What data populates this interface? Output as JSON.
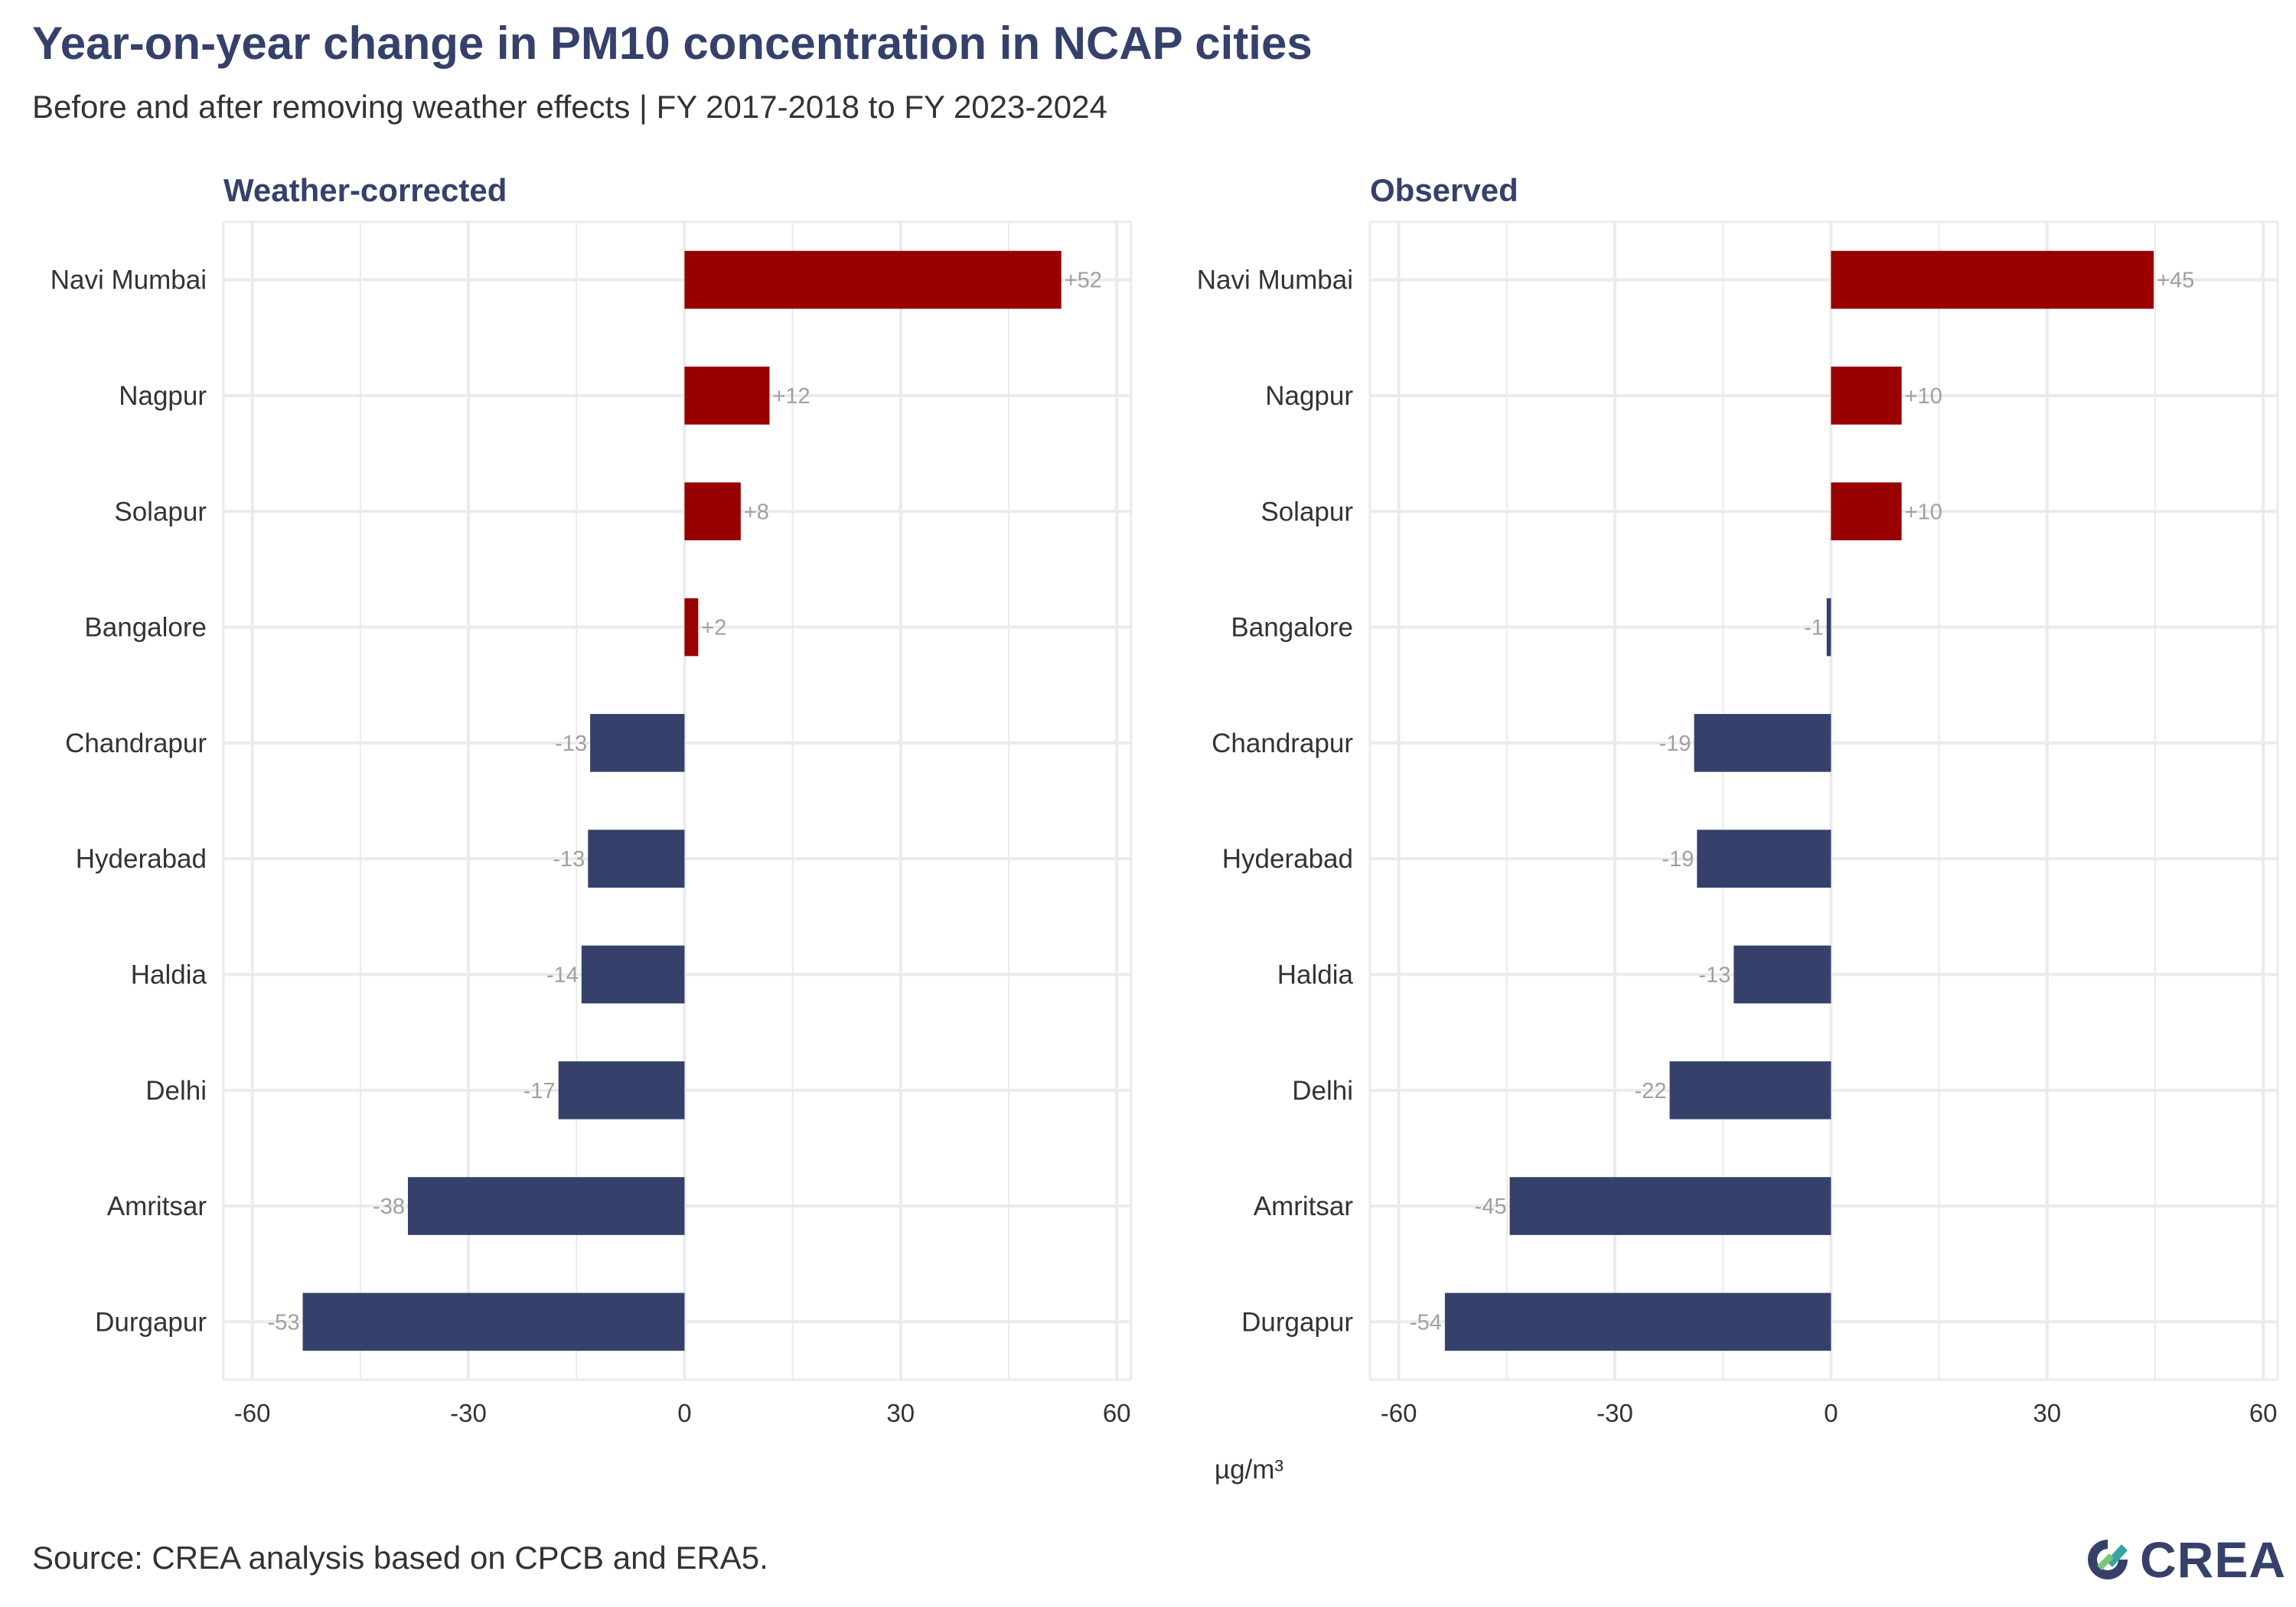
{
  "title": "Year-on-year change in PM10 concentration in NCAP cities",
  "subtitle": "Before and after removing weather effects | FY 2017-2018 to FY 2023-2024",
  "source": "Source: CREA analysis based on CPCB and ERA5.",
  "logo_text": "CREA",
  "colors": {
    "increase": "#990000",
    "decrease": "#35416b",
    "grid": "#ebebeb",
    "title": "#35416b"
  },
  "chart_data": [
    {
      "type": "bar",
      "orientation": "horizontal",
      "title": "Weather-corrected",
      "xlabel": "µg/m³",
      "xlim": [
        -64,
        62
      ],
      "xticks": [
        -60,
        -30,
        0,
        30,
        60
      ],
      "xtick_labels": [
        "-60",
        "-30",
        "0",
        "30",
        "60"
      ],
      "categories": [
        "Navi Mumbai",
        "Nagpur",
        "Solapur",
        "Bangalore",
        "Chandrapur",
        "Hyderabad",
        "Haldia",
        "Delhi",
        "Amritsar",
        "Durgapur"
      ],
      "values": [
        52.3,
        11.8,
        7.8,
        1.9,
        -13.1,
        -13.4,
        -14.3,
        -17.5,
        -38.4,
        -53.0
      ],
      "data_labels": [
        "+52",
        "+12",
        "+8",
        "+2",
        "-13",
        "-13",
        "-14",
        "-17",
        "-38",
        "-53"
      ]
    },
    {
      "type": "bar",
      "orientation": "horizontal",
      "title": "Observed",
      "xlabel": "µg/m³",
      "xlim": [
        -64,
        62
      ],
      "xticks": [
        -60,
        -30,
        0,
        30,
        60
      ],
      "xtick_labels": [
        "-60",
        "-30",
        "0",
        "30",
        "60"
      ],
      "categories": [
        "Navi Mumbai",
        "Nagpur",
        "Solapur",
        "Bangalore",
        "Chandrapur",
        "Hyderabad",
        "Haldia",
        "Delhi",
        "Amritsar",
        "Durgapur"
      ],
      "values": [
        44.8,
        9.8,
        9.8,
        -0.6,
        -19.0,
        -18.6,
        -13.5,
        -22.4,
        -44.6,
        -53.6
      ],
      "data_labels": [
        "+45",
        "+10",
        "+10",
        "-1",
        "-19",
        "-19",
        "-13",
        "-22",
        "-45",
        "-54"
      ]
    }
  ]
}
